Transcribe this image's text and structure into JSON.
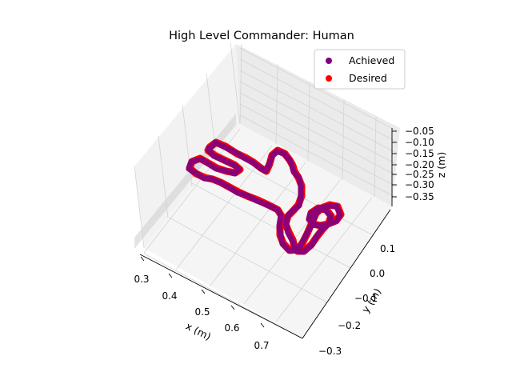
{
  "chart_data": {
    "type": "scatter3d",
    "title": "High Level Commander: Human",
    "xlabel": "x (m)",
    "ylabel": "y (m)",
    "zlabel": "z (m)",
    "x_ticks": [
      "0.3",
      "0.4",
      "0.5",
      "0.6",
      "0.7"
    ],
    "y_ticks": [
      "0.1",
      "0.0",
      "−0.1",
      "−0.2",
      "−0.3"
    ],
    "z_ticks": [
      "−0.05",
      "−0.10",
      "−0.15",
      "−0.20",
      "−0.25",
      "−0.30",
      "−0.35"
    ],
    "grid": true,
    "legend_position": "top-right",
    "series": [
      {
        "name": "Achieved",
        "color": "#800080"
      },
      {
        "name": "Desired",
        "color": "#ff0000"
      }
    ]
  }
}
